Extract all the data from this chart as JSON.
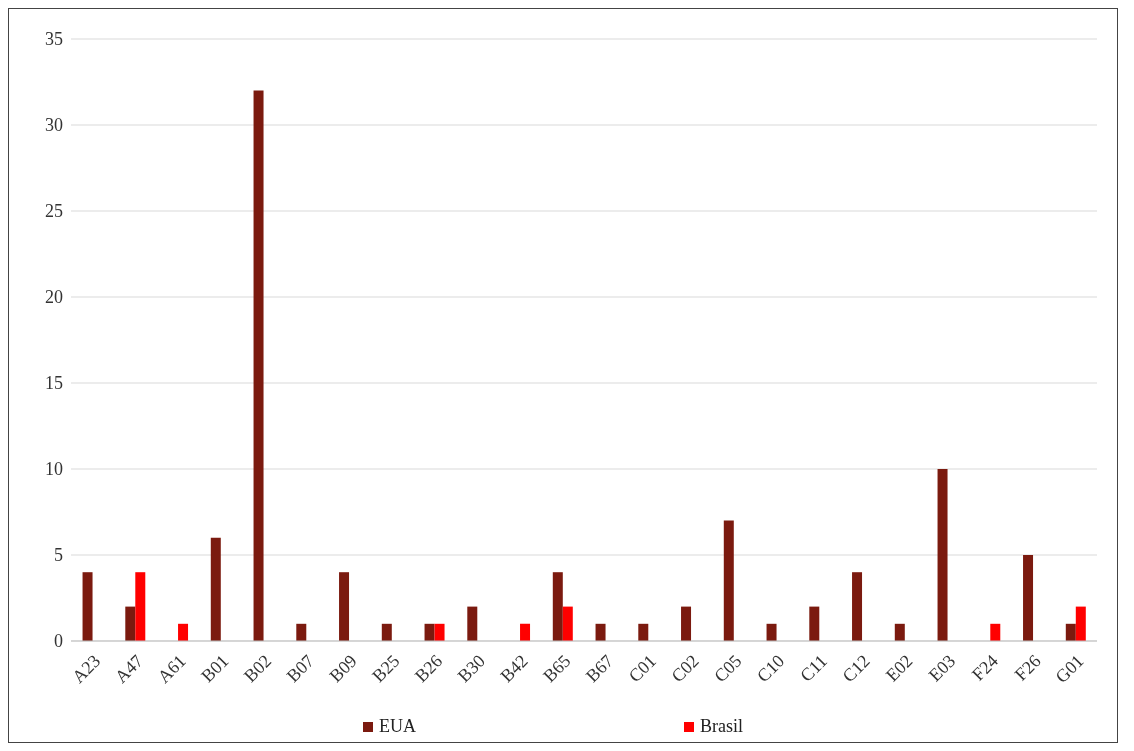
{
  "chart_data": {
    "type": "bar",
    "categories": [
      "A23",
      "A47",
      "A61",
      "B01",
      "B02",
      "B07",
      "B09",
      "B25",
      "B26",
      "B30",
      "B42",
      "B65",
      "B67",
      "C01",
      "C02",
      "C05",
      "C10",
      "C11",
      "C12",
      "E02",
      "E03",
      "F24",
      "F26",
      "G01"
    ],
    "series": [
      {
        "name": "EUA",
        "color": "#7b1a0f",
        "values": [
          4,
          2,
          0,
          6,
          32,
          1,
          4,
          1,
          1,
          2,
          0,
          4,
          1,
          1,
          2,
          7,
          1,
          2,
          4,
          1,
          10,
          0,
          5,
          1
        ]
      },
      {
        "name": "Brasil",
        "color": "#ff0000",
        "values": [
          0,
          4,
          1,
          0,
          0,
          0,
          0,
          0,
          1,
          0,
          1,
          2,
          0,
          0,
          0,
          0,
          0,
          0,
          0,
          0,
          0,
          1,
          0,
          2
        ]
      }
    ],
    "ylim": [
      0,
      35
    ],
    "yticks": [
      0,
      5,
      10,
      15,
      20,
      25,
      30,
      35
    ],
    "grid": "y",
    "legend": "bottom"
  }
}
